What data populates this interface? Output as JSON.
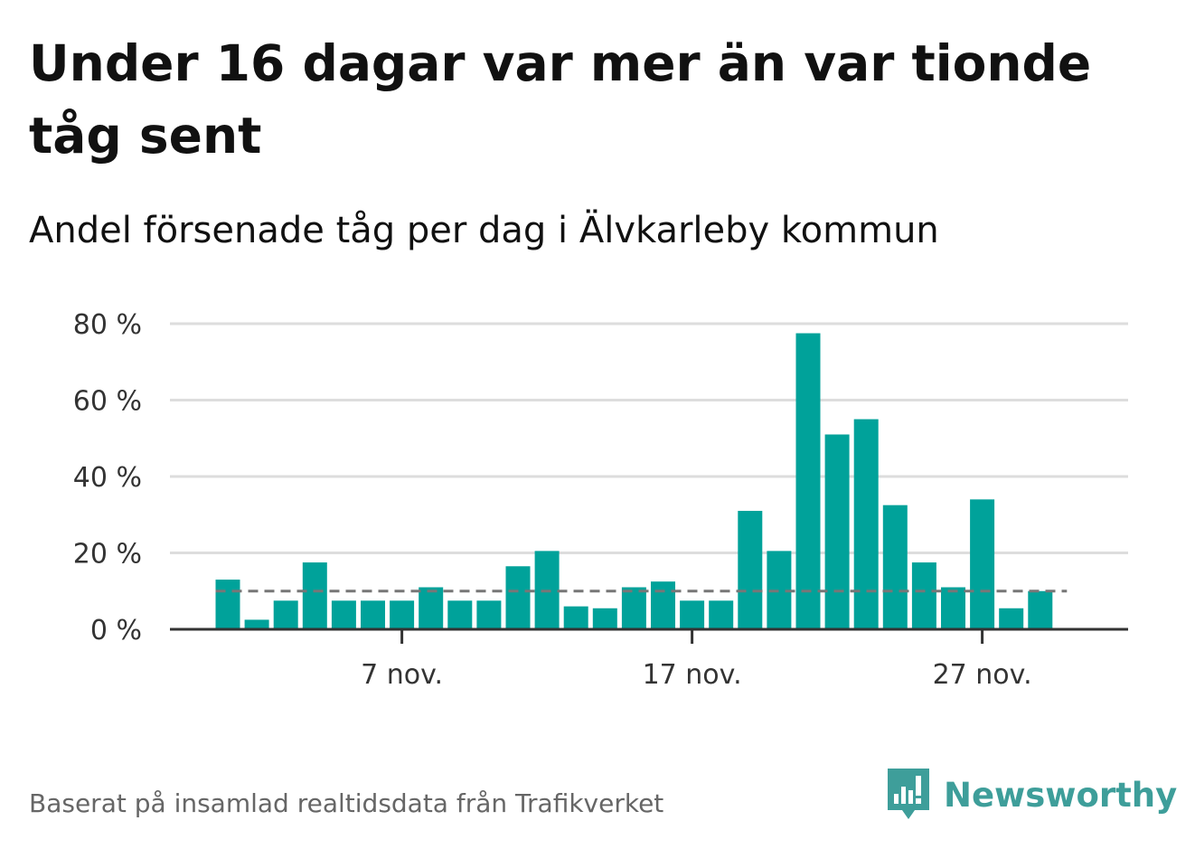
{
  "title": "Under 16 dagar var mer än var tionde tåg sent",
  "subtitle": "Andel försenade tåg per dag i Älvkarleby kommun",
  "footer": "Baserat på insamlad realtidsdata från Trafikverket",
  "brand": {
    "name": "Newsworthy",
    "color": "#3e9e9a"
  },
  "colors": {
    "bar": "#00a29a",
    "grid": "#dddddd",
    "axis": "#333333",
    "reference": "#777777"
  },
  "chart_data": {
    "type": "bar",
    "x": [
      "1 nov.",
      "2 nov.",
      "3 nov.",
      "4 nov.",
      "5 nov.",
      "6 nov.",
      "7 nov.",
      "8 nov.",
      "9 nov.",
      "10 nov.",
      "11 nov.",
      "12 nov.",
      "13 nov.",
      "14 nov.",
      "15 nov.",
      "16 nov.",
      "17 nov.",
      "18 nov.",
      "19 nov.",
      "20 nov.",
      "21 nov.",
      "22 nov.",
      "23 nov.",
      "24 nov.",
      "25 nov.",
      "26 nov.",
      "27 nov.",
      "28 nov.",
      "29 nov."
    ],
    "values": [
      13,
      2.5,
      7.5,
      17.5,
      7.5,
      7.5,
      7.5,
      11,
      7.5,
      7.5,
      16.5,
      20.5,
      6,
      5.5,
      11,
      12.5,
      7.5,
      7.5,
      31,
      20.5,
      77.5,
      51,
      55,
      32.5,
      17.5,
      11,
      34,
      5.5,
      10
    ],
    "reference_line": 10,
    "ylim": [
      0,
      80
    ],
    "yticks": [
      0,
      20,
      40,
      60,
      80
    ],
    "ytick_labels": [
      "0 %",
      "20 %",
      "40 %",
      "60 %",
      "80 %"
    ],
    "xticks": [
      {
        "index": 6,
        "label": "7 nov."
      },
      {
        "index": 16,
        "label": "17 nov."
      },
      {
        "index": 26,
        "label": "27 nov."
      }
    ],
    "grid": true,
    "legend": "none"
  }
}
